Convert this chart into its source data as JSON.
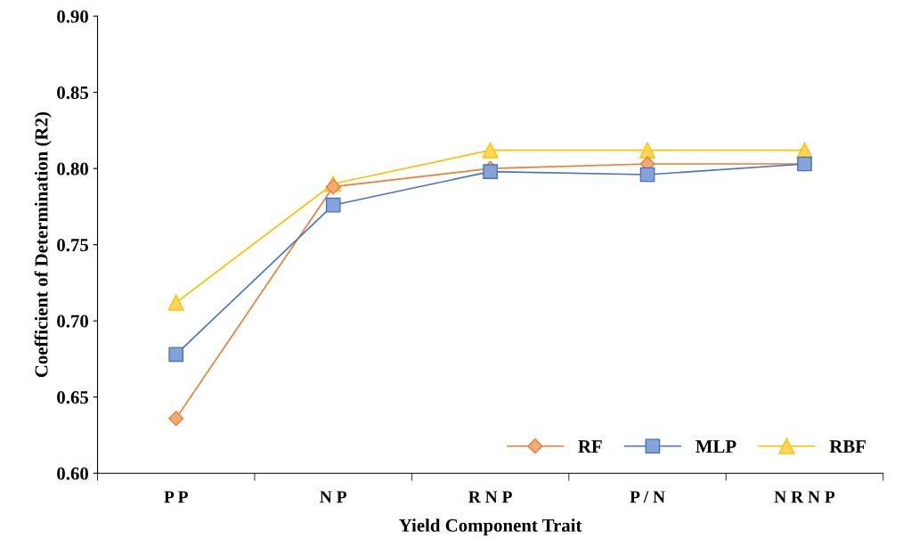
{
  "chart_data": {
    "type": "line",
    "xlabel": "Yield Component Trait",
    "ylabel": "Coefficient of Determination (R2)",
    "categories": [
      "P P",
      "N P",
      "R N P",
      "P / N",
      "N R N P"
    ],
    "series": [
      {
        "name": "RF",
        "color": "#ed7d31",
        "marker": "diamond",
        "values": [
          0.636,
          0.788,
          0.8,
          0.803,
          0.803
        ]
      },
      {
        "name": "MLP",
        "color": "#4472c4",
        "marker": "square",
        "values": [
          0.678,
          0.776,
          0.798,
          0.796,
          0.803
        ]
      },
      {
        "name": "RBF",
        "color": "#ffc000",
        "marker": "triangle",
        "values": [
          0.712,
          0.79,
          0.812,
          0.812,
          0.812
        ]
      }
    ],
    "ylim": [
      0.6,
      0.9
    ],
    "yticks": [
      {
        "value": 0.6,
        "label": "0.60"
      },
      {
        "value": 0.65,
        "label": "0.65"
      },
      {
        "value": 0.7,
        "label": "0.70"
      },
      {
        "value": 0.75,
        "label": "0.75"
      },
      {
        "value": 0.8,
        "label": "0.80"
      },
      {
        "value": 0.85,
        "label": "0.85"
      },
      {
        "value": 0.9,
        "label": "0.90"
      }
    ],
    "grid": false,
    "legend": "bottom right",
    "line_style": "solid"
  }
}
